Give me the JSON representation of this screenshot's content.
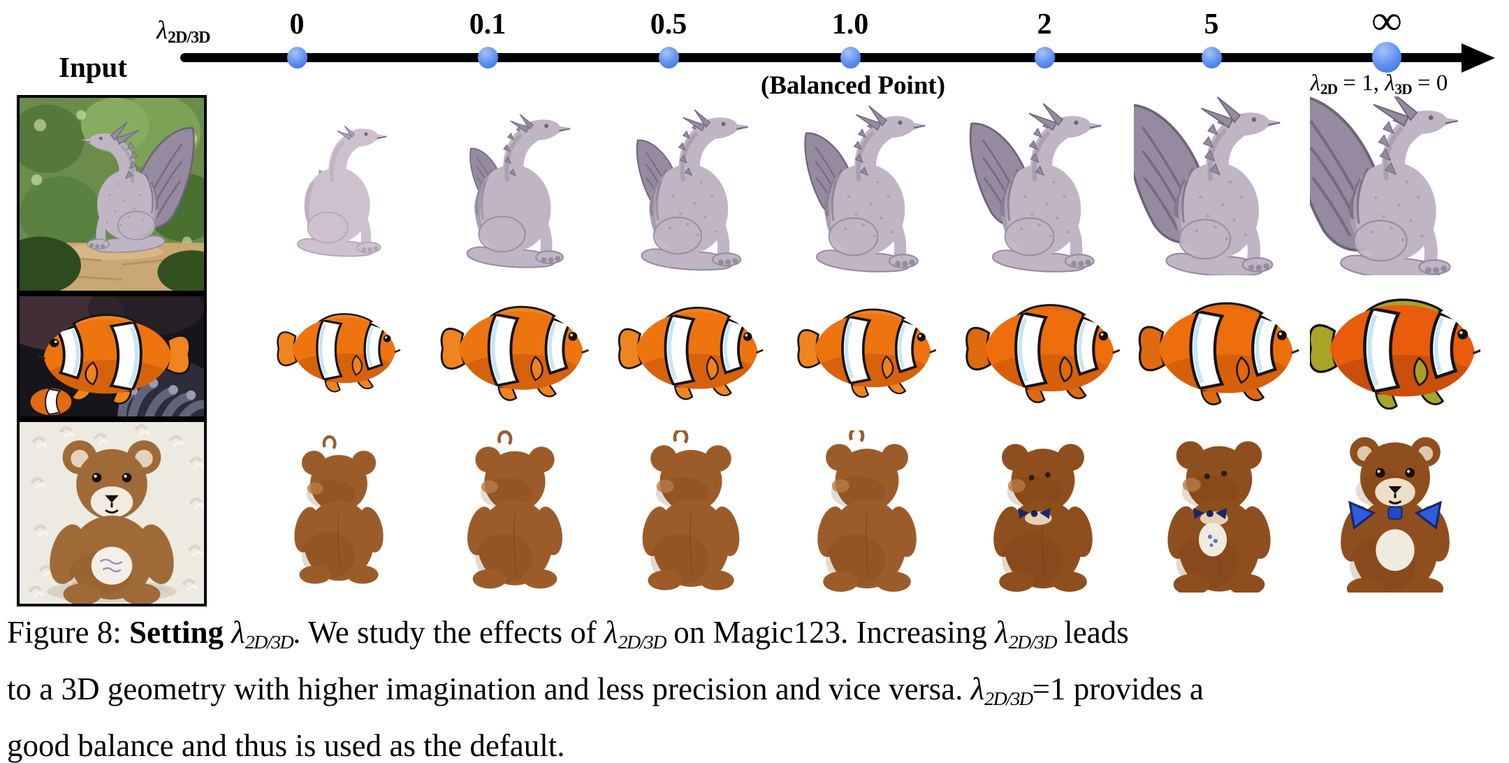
{
  "figure": {
    "input_label": "Input",
    "axis": {
      "lambda_symbol": "λ",
      "lambda_subscript": "2D/3D",
      "ticks": [
        "0",
        "0.1",
        "0.5",
        "1.0",
        "2",
        "5",
        "∞"
      ],
      "balanced_point_label": "(Balanced Point)",
      "infinity_annotation": {
        "lambda1": "λ",
        "sub1": "2D",
        "mid": " = 1, ",
        "lambda2": "λ",
        "sub2": "3D",
        "end": " = 0"
      }
    },
    "rows": [
      {
        "id": "dragon",
        "input_description": "gray dragon statue in a garden"
      },
      {
        "id": "fish",
        "input_description": "orange clownfish near a sea anemone"
      },
      {
        "id": "bear",
        "input_description": "brown teddy bear on white fur"
      }
    ],
    "palette": {
      "dot_blue": "#5b8ff0",
      "axis_black": "#000000",
      "dragon_gray": "#c0b5c4",
      "dragon_shade": "#958aa0",
      "dragon_dark": "#6e6378",
      "fish_orange": "#ee7410",
      "fish_dark_orange": "#c8570a",
      "fish_infinity_fin": "#a8a428",
      "stripe_white": "#ffffff",
      "bear_brown": "#9c5c2a",
      "bear_dark_brown": "#8f4e1e",
      "bow_blue": "#2f5ce0",
      "bow_navy": "#15276f"
    },
    "caption": {
      "math_base": "λ",
      "math_sub": "2D/3D",
      "segments": [
        {
          "text": "Figure 8: "
        },
        {
          "text": "Setting ",
          "bold": true
        },
        {
          "math": true
        },
        {
          "text": ". We study the effects of "
        },
        {
          "math": true
        },
        {
          "text": " on Magic123. Increasing "
        },
        {
          "math": true
        },
        {
          "text": " leads",
          "break_after": true
        },
        {
          "text": "to a 3D geometry with higher imagination and less precision and vice versa. "
        },
        {
          "math": true
        },
        {
          "text": "=1 provides a",
          "break_after": true
        },
        {
          "text": "good balance and thus is used as the default."
        }
      ]
    }
  }
}
